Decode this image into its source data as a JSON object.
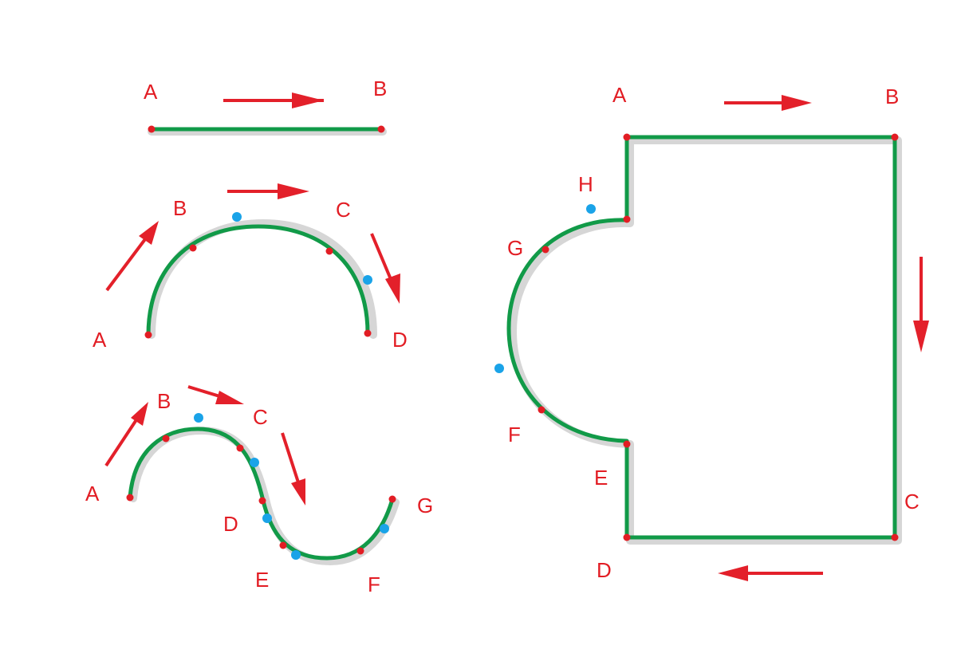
{
  "colors": {
    "path": "#119a48",
    "shadow": "#d6d6d6",
    "arrow": "#e3202a",
    "anchor": "#e21d24",
    "control": "#1aa3e8",
    "label": "#e21d24"
  },
  "figures": {
    "line": {
      "labels": [
        "A",
        "B"
      ]
    },
    "arc": {
      "labels": [
        "A",
        "B",
        "C",
        "D"
      ]
    },
    "s_curve": {
      "labels": [
        "A",
        "B",
        "C",
        "D",
        "E",
        "F",
        "G"
      ]
    },
    "shape": {
      "labels": [
        "A",
        "B",
        "C",
        "D",
        "E",
        "F",
        "G",
        "H"
      ]
    }
  }
}
